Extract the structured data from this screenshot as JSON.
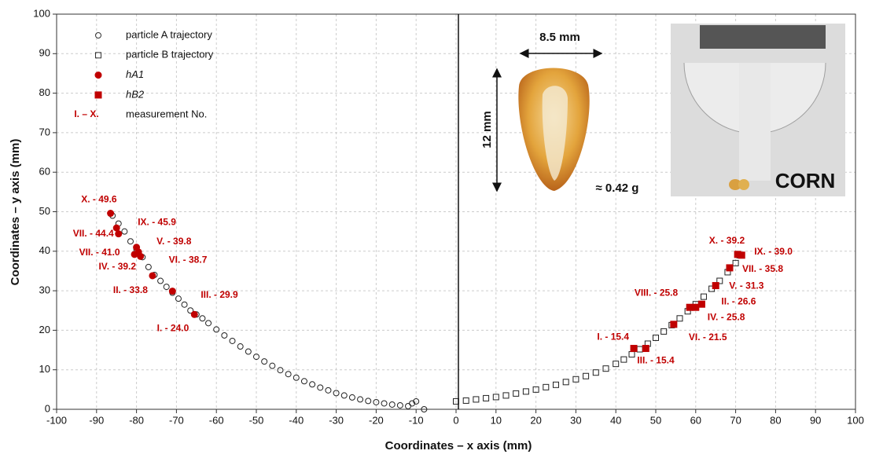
{
  "chart_data": {
    "type": "scatter",
    "xlabel": "Coordinates – x axis (mm)",
    "ylabel": "Coordinates – y axis (mm)",
    "xlim": [
      -100,
      100
    ],
    "ylim": [
      0,
      100
    ],
    "xticks": [
      -100,
      -90,
      -80,
      -70,
      -60,
      -50,
      -40,
      -30,
      -20,
      -10,
      0,
      10,
      20,
      30,
      40,
      50,
      60,
      70,
      80,
      90,
      100
    ],
    "yticks": [
      0,
      10,
      20,
      30,
      40,
      50,
      60,
      70,
      80,
      90,
      100
    ],
    "grid": true,
    "series": [
      {
        "name": "particle A trajectory",
        "marker": "circle-open",
        "color": "#222222",
        "x": [
          -86,
          -84.5,
          -83,
          -81.5,
          -80,
          -78.5,
          -77,
          -75.5,
          -74,
          -72.5,
          -71,
          -69.5,
          -68,
          -66.5,
          -65,
          -63.5,
          -62,
          -60,
          -58,
          -56,
          -54,
          -52,
          -50,
          -48,
          -46,
          -44,
          -42,
          -40,
          -38,
          -36,
          -34,
          -32,
          -30,
          -28,
          -26,
          -24,
          -22,
          -20,
          -18,
          -16,
          -14,
          -12,
          -11,
          -10,
          -8
        ],
        "values": [
          49,
          47,
          45,
          42.5,
          40.5,
          38.5,
          36,
          34,
          32.5,
          31,
          29.5,
          28,
          26.5,
          25,
          24,
          23,
          21.8,
          20.2,
          18.7,
          17.3,
          15.9,
          14.6,
          13.3,
          12.1,
          11,
          9.9,
          8.9,
          8,
          7.1,
          6.3,
          5.5,
          4.8,
          4.1,
          3.5,
          3,
          2.5,
          2.1,
          1.8,
          1.5,
          1.2,
          1,
          0.8,
          1.5,
          2,
          0
        ]
      },
      {
        "name": "particle B trajectory",
        "marker": "square-open",
        "color": "#222222",
        "x": [
          0,
          2.5,
          5,
          7.5,
          10,
          12.5,
          15,
          17.5,
          20,
          22.5,
          25,
          27.5,
          30,
          32.5,
          35,
          37.5,
          40,
          42,
          44,
          46,
          48,
          50,
          52,
          54,
          56,
          58,
          60,
          62,
          64,
          66,
          68,
          70,
          71
        ],
        "values": [
          2,
          2.2,
          2.5,
          2.8,
          3.1,
          3.5,
          4,
          4.5,
          5,
          5.6,
          6.2,
          6.9,
          7.6,
          8.4,
          9.3,
          10.3,
          11.5,
          12.6,
          13.9,
          15.2,
          16.6,
          18.1,
          19.7,
          21.3,
          23,
          24.8,
          26.6,
          28.5,
          30.5,
          32.5,
          34.7,
          37,
          39
        ]
      },
      {
        "name": "hA1",
        "marker": "circle",
        "color": "#c00000",
        "x": [
          -86.5,
          -85,
          -84.5,
          -79.5,
          -80,
          -79,
          -80.5,
          -76,
          -71,
          -65.5
        ],
        "values": [
          49.6,
          45.9,
          44.4,
          39.8,
          41.0,
          38.7,
          39.2,
          33.8,
          29.9,
          24.0
        ],
        "value_labels": [
          "X. - 49.6",
          "IX. - 45.9",
          "VII. - 44.4",
          "V. - 39.8",
          "VII. - 41.0",
          "VI. - 38.7",
          "IV. - 39.2",
          "II. - 33.8",
          "III. - 29.9",
          "I. - 24.0"
        ]
      },
      {
        "name": "hB2",
        "marker": "square",
        "color": "#c00000",
        "x": [
          70.5,
          71.5,
          68.5,
          65,
          61.5,
          58.5,
          60,
          54.5,
          44.5,
          47.5
        ],
        "values": [
          39.2,
          39.0,
          35.8,
          31.3,
          26.6,
          25.8,
          25.8,
          21.5,
          15.4,
          15.4
        ],
        "value_labels": [
          "X. - 39.2",
          "IX. - 39.0",
          "VII. - 35.8",
          "V. - 31.3",
          "II. - 26.6",
          "VIII. - 25.8",
          "IV. - 25.8",
          "VI. - 21.5",
          "I. - 15.4",
          "III. - 15.4"
        ]
      }
    ],
    "legend_note": {
      "marker_label": "I. – X.",
      "text": "measurement No."
    },
    "annotations": {
      "width": "8.5 mm",
      "height": "12 mm",
      "mass": "≈ 0.42 g",
      "photo": "CORN"
    }
  }
}
